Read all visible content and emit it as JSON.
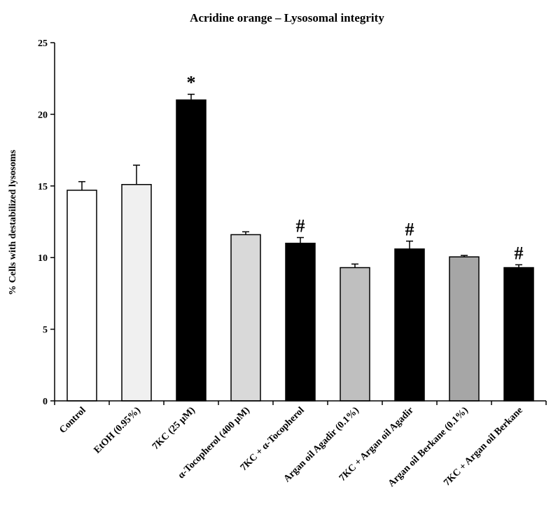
{
  "chart_data": {
    "type": "bar",
    "title": "Acridine orange – Lysosomal integrity",
    "xlabel": "",
    "ylabel": "% Cells with destabilized lysosoms",
    "ylim": [
      0,
      25
    ],
    "yticks": [
      "0",
      "5",
      "10",
      "15",
      "20",
      "25"
    ],
    "grid": false,
    "categories": [
      "Control",
      "EtOH (0.95%)",
      "7KC (25 µM)",
      "α-Tocopherol (400 µM)",
      "7KC + α-Tocopherol",
      "Argan oil Agadir (0.1%)",
      "7KC + Argan oil Agadir",
      "Argan oil Berkane (0.1%)",
      "7KC + Argan oil Berkane"
    ],
    "values": [
      14.7,
      15.1,
      21.0,
      11.6,
      11.0,
      9.3,
      10.6,
      10.05,
      9.3
    ],
    "errors": [
      0.6,
      1.35,
      0.4,
      0.2,
      0.4,
      0.25,
      0.55,
      0.1,
      0.2
    ],
    "colors": [
      "#ffffff",
      "#f0f0f0",
      "#000000",
      "#d9d9d9",
      "#000000",
      "#bfbfbf",
      "#000000",
      "#a6a6a6",
      "#000000"
    ],
    "annotations": [
      "",
      "",
      "*",
      "",
      "#",
      "",
      "#",
      "",
      "#"
    ]
  }
}
